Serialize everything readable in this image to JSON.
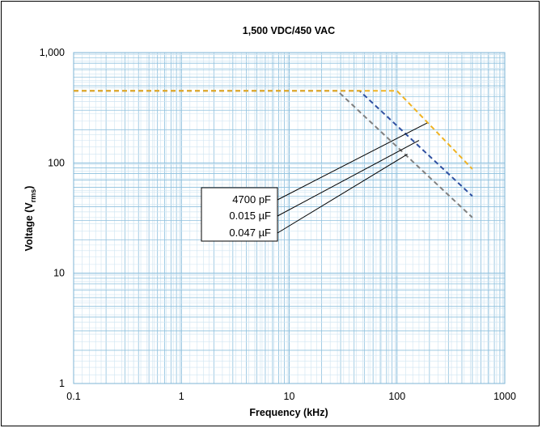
{
  "chart_data": {
    "type": "line",
    "title": "1,500 VDC/450 VAC",
    "xlabel": "Frequency (kHz)",
    "ylabel": {
      "main": "Voltage (V",
      "sub": "rms",
      "close": ")"
    },
    "xscale": "log",
    "yscale": "log",
    "xlim": [
      0.1,
      1000
    ],
    "ylim": [
      1,
      1000
    ],
    "grid": true,
    "x_ticks": [
      {
        "value": 0.1,
        "label": "0.1"
      },
      {
        "value": 1,
        "label": "1"
      },
      {
        "value": 10,
        "label": "10"
      },
      {
        "value": 100,
        "label": "100"
      },
      {
        "value": 1000,
        "label": "1000"
      }
    ],
    "y_ticks": [
      {
        "value": 1,
        "label": "1"
      },
      {
        "value": 10,
        "label": "10"
      },
      {
        "value": 100,
        "label": "100"
      },
      {
        "value": 1000,
        "label": "1,000"
      }
    ],
    "legend_position": "center-left",
    "series": [
      {
        "name": "4700 pF",
        "color": "#f0b323",
        "x": [
          0.1,
          100,
          500
        ],
        "y": [
          450,
          450,
          88
        ]
      },
      {
        "name": "0.015 µF",
        "color": "#2e4fa0",
        "x": [
          0.1,
          45,
          500
        ],
        "y": [
          450,
          450,
          50
        ]
      },
      {
        "name": "0.047 µF",
        "color": "#808080",
        "x": [
          0.1,
          28,
          500
        ],
        "y": [
          450,
          450,
          32
        ]
      }
    ],
    "legend_leaders": [
      {
        "series": "4700 pF",
        "x": 190,
        "y": 230
      },
      {
        "series": "0.015 µF",
        "x": 160,
        "y": 160
      },
      {
        "series": "0.047 µF",
        "x": 125,
        "y": 120
      }
    ]
  }
}
